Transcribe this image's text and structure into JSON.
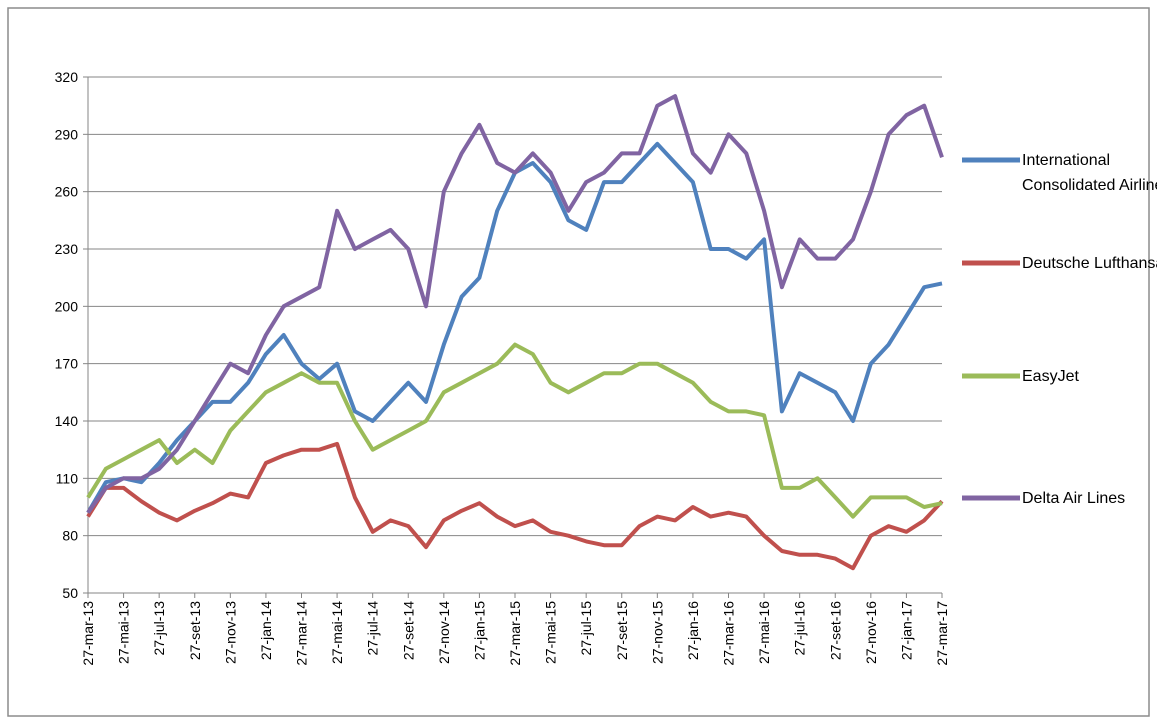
{
  "chart_data": {
    "type": "line",
    "categories": [
      "27-mar-13",
      null,
      "27-mai-13",
      null,
      "27-jul-13",
      null,
      "27-set-13",
      null,
      "27-nov-13",
      null,
      "27-jan-14",
      null,
      "27-mar-14",
      null,
      "27-mai-14",
      null,
      "27-jul-14",
      null,
      "27-set-14",
      null,
      "27-nov-14",
      null,
      "27-jan-15",
      null,
      "27-mar-15",
      null,
      "27-mai-15",
      null,
      "27-jul-15",
      null,
      "27-set-15",
      null,
      "27-nov-15",
      null,
      "27-jan-16",
      null,
      "27-mar-16",
      null,
      "27-mai-16",
      null,
      "27-jul-16",
      null,
      "27-set-16",
      null,
      "27-nov-16",
      null,
      "27-jan-17",
      null,
      "27-mar-17"
    ],
    "series": [
      {
        "name": "International Consolidated Airlines",
        "color": "#4f81bd",
        "values": [
          92,
          108,
          110,
          108,
          118,
          130,
          140,
          150,
          150,
          160,
          175,
          185,
          170,
          162,
          170,
          145,
          140,
          150,
          160,
          150,
          180,
          205,
          215,
          250,
          270,
          275,
          265,
          245,
          240,
          265,
          265,
          275,
          285,
          275,
          265,
          230,
          230,
          225,
          235,
          145,
          165,
          160,
          155,
          140,
          170,
          180,
          195,
          210,
          212
        ]
      },
      {
        "name": "Deutsche Lufthansa",
        "color": "#c0504d",
        "values": [
          90,
          105,
          105,
          98,
          92,
          88,
          93,
          97,
          102,
          100,
          118,
          122,
          125,
          125,
          128,
          100,
          82,
          88,
          85,
          74,
          88,
          93,
          97,
          90,
          85,
          88,
          82,
          80,
          77,
          75,
          75,
          85,
          90,
          88,
          95,
          90,
          92,
          90,
          80,
          72,
          70,
          70,
          68,
          63,
          80,
          85,
          82,
          88,
          98
        ]
      },
      {
        "name": "EasyJet",
        "color": "#9bbb59",
        "values": [
          100,
          115,
          120,
          125,
          130,
          118,
          125,
          118,
          135,
          145,
          155,
          160,
          165,
          160,
          160,
          140,
          125,
          130,
          135,
          140,
          155,
          160,
          165,
          170,
          180,
          175,
          160,
          155,
          160,
          165,
          165,
          170,
          170,
          165,
          160,
          150,
          145,
          145,
          143,
          105,
          105,
          110,
          100,
          90,
          100,
          100,
          100,
          95,
          97
        ]
      },
      {
        "name": "Delta Air Lines",
        "color": "#8064a2",
        "values": [
          92,
          105,
          110,
          110,
          115,
          125,
          140,
          155,
          170,
          165,
          185,
          200,
          205,
          210,
          250,
          230,
          235,
          240,
          230,
          200,
          260,
          280,
          295,
          275,
          270,
          280,
          270,
          250,
          265,
          270,
          280,
          280,
          305,
          310,
          280,
          270,
          290,
          280,
          250,
          210,
          235,
          225,
          225,
          235,
          260,
          290,
          300,
          305,
          278
        ]
      }
    ],
    "ylim": [
      50,
      320
    ],
    "yticks": [
      50,
      80,
      110,
      140,
      170,
      200,
      230,
      260,
      290,
      320
    ],
    "grid": true,
    "legend": "right"
  }
}
